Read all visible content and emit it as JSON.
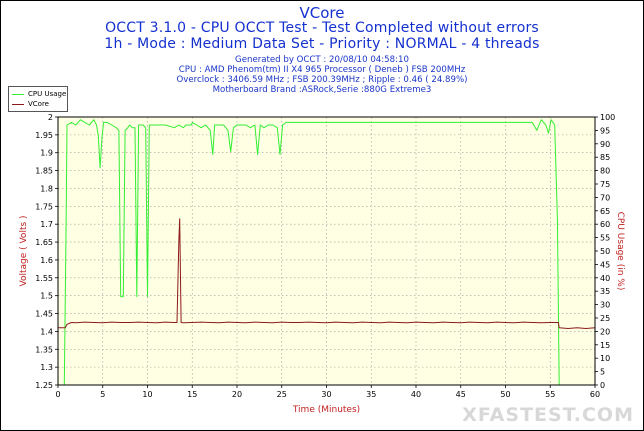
{
  "chart_data": {
    "type": "line",
    "title": "VCore",
    "subtitle": [
      "OCCT 3.1.0 - CPU OCCT Test - Test Completed without errors",
      "1h - Mode : Medium Data Set - Priority : NORMAL - 4 threads"
    ],
    "info": [
      "Generated by OCCT : 20/08/10 04:58:10",
      "CPU : AMD Phenom(tm) II X4 965 Processor ( Deneb ) FSB 200MHz",
      "Overclock : 3406.59 MHz ; FSB 200.39MHz ; Ripple : 0.46 ( 24.89%)",
      "Motherboard Brand :ASRock,Serie :880G Extreme3"
    ],
    "xlabel": "Time (Minutes)",
    "ylabel": "Voltage ( Volts )",
    "y2label": "CPU Usage (in %)",
    "xlim": [
      0,
      60
    ],
    "ylim": [
      1.25,
      2
    ],
    "y2lim": [
      0,
      100
    ],
    "xticks": [
      0,
      5,
      10,
      15,
      20,
      25,
      30,
      35,
      40,
      45,
      50,
      55,
      60
    ],
    "yticks": [
      1.25,
      1.3,
      1.35,
      1.4,
      1.45,
      1.5,
      1.55,
      1.6,
      1.65,
      1.7,
      1.75,
      1.8,
      1.85,
      1.9,
      1.95,
      2
    ],
    "y2ticks": [
      0,
      5,
      10,
      15,
      20,
      25,
      30,
      35,
      40,
      45,
      50,
      55,
      60,
      65,
      70,
      75,
      80,
      85,
      90,
      95,
      100
    ],
    "grid": true,
    "legend_position": "top-left",
    "series": [
      {
        "name": "CPU Usage",
        "axis": "right",
        "color": "#33ee33",
        "points": [
          [
            0,
            0
          ],
          [
            0.3,
            0
          ],
          [
            0.7,
            0
          ],
          [
            0.9,
            60
          ],
          [
            1.0,
            97
          ],
          [
            1.5,
            98
          ],
          [
            2,
            97
          ],
          [
            2.5,
            99
          ],
          [
            3,
            98
          ],
          [
            3.5,
            97
          ],
          [
            4,
            99
          ],
          [
            4.3,
            97
          ],
          [
            4.5,
            93
          ],
          [
            4.7,
            81
          ],
          [
            4.9,
            92
          ],
          [
            5.1,
            98
          ],
          [
            5.5,
            98
          ],
          [
            6,
            97
          ],
          [
            6.5,
            96
          ],
          [
            6.8,
            95
          ],
          [
            7.0,
            33
          ],
          [
            7.3,
            33
          ],
          [
            7.5,
            95
          ],
          [
            7.8,
            96
          ],
          [
            8.0,
            97
          ],
          [
            8.3,
            96
          ],
          [
            8.6,
            96
          ],
          [
            8.8,
            33
          ],
          [
            9.0,
            97
          ],
          [
            9.5,
            97
          ],
          [
            9.8,
            96
          ],
          [
            10.0,
            33
          ],
          [
            10.2,
            97
          ],
          [
            10.5,
            97
          ],
          [
            11,
            97
          ],
          [
            11.5,
            97
          ],
          [
            12,
            97
          ],
          [
            13,
            96
          ],
          [
            13.5,
            97
          ],
          [
            14,
            96
          ],
          [
            14.3,
            97
          ],
          [
            14.5,
            97
          ],
          [
            14.7,
            97
          ],
          [
            14.9,
            97
          ],
          [
            15,
            98
          ],
          [
            15.5,
            97
          ],
          [
            16,
            96
          ],
          [
            16.5,
            97
          ],
          [
            17,
            95
          ],
          [
            17.3,
            86
          ],
          [
            17.5,
            97
          ],
          [
            18,
            97
          ],
          [
            18.5,
            97
          ],
          [
            19,
            95
          ],
          [
            19.3,
            87
          ],
          [
            19.6,
            96
          ],
          [
            20,
            97
          ],
          [
            20.5,
            97
          ],
          [
            21,
            97
          ],
          [
            21.5,
            96
          ],
          [
            22,
            97
          ],
          [
            22.3,
            86
          ],
          [
            22.6,
            97
          ],
          [
            23,
            96
          ],
          [
            23.5,
            97
          ],
          [
            24,
            97
          ],
          [
            24.5,
            96
          ],
          [
            24.8,
            86
          ],
          [
            25.1,
            97
          ],
          [
            25.5,
            98
          ],
          [
            26,
            98
          ],
          [
            27,
            98
          ],
          [
            28,
            98
          ],
          [
            29,
            98
          ],
          [
            30,
            98
          ],
          [
            31,
            98
          ],
          [
            32,
            98
          ],
          [
            33,
            98
          ],
          [
            34,
            98
          ],
          [
            35,
            98
          ],
          [
            36,
            98
          ],
          [
            37,
            98
          ],
          [
            38,
            98
          ],
          [
            39,
            98
          ],
          [
            40,
            98
          ],
          [
            41,
            98
          ],
          [
            42,
            98
          ],
          [
            43,
            98
          ],
          [
            44,
            98
          ],
          [
            45,
            98
          ],
          [
            46,
            98
          ],
          [
            47,
            98
          ],
          [
            48,
            98
          ],
          [
            49,
            98
          ],
          [
            50,
            98
          ],
          [
            51,
            98
          ],
          [
            52,
            98
          ],
          [
            53,
            98
          ],
          [
            53.5,
            95
          ],
          [
            54,
            99
          ],
          [
            54.5,
            97
          ],
          [
            54.8,
            94
          ],
          [
            55.1,
            99
          ],
          [
            55.5,
            97
          ],
          [
            55.8,
            62
          ],
          [
            56.0,
            0
          ],
          [
            60,
            0
          ]
        ]
      },
      {
        "name": "VCore",
        "axis": "left",
        "color": "#8c1a1a",
        "points": [
          [
            0,
            1.41
          ],
          [
            0.8,
            1.41
          ],
          [
            1.0,
            1.42
          ],
          [
            1.5,
            1.425
          ],
          [
            2,
            1.424
          ],
          [
            3,
            1.426
          ],
          [
            4,
            1.425
          ],
          [
            5,
            1.424
          ],
          [
            6,
            1.426
          ],
          [
            7,
            1.425
          ],
          [
            8,
            1.425
          ],
          [
            9,
            1.426
          ],
          [
            10,
            1.425
          ],
          [
            11,
            1.424
          ],
          [
            12,
            1.426
          ],
          [
            13,
            1.425
          ],
          [
            13.3,
            1.425
          ],
          [
            13.5,
            1.65
          ],
          [
            13.6,
            1.715
          ],
          [
            13.75,
            1.425
          ],
          [
            14,
            1.424
          ],
          [
            15,
            1.425
          ],
          [
            16,
            1.426
          ],
          [
            17,
            1.425
          ],
          [
            18,
            1.424
          ],
          [
            19,
            1.426
          ],
          [
            20,
            1.425
          ],
          [
            21,
            1.424
          ],
          [
            22,
            1.426
          ],
          [
            23,
            1.425
          ],
          [
            24,
            1.424
          ],
          [
            25,
            1.426
          ],
          [
            26,
            1.425
          ],
          [
            27,
            1.425
          ],
          [
            28,
            1.426
          ],
          [
            29,
            1.425
          ],
          [
            30,
            1.424
          ],
          [
            31,
            1.426
          ],
          [
            32,
            1.425
          ],
          [
            33,
            1.424
          ],
          [
            34,
            1.426
          ],
          [
            35,
            1.425
          ],
          [
            36,
            1.424
          ],
          [
            37,
            1.426
          ],
          [
            38,
            1.425
          ],
          [
            39,
            1.424
          ],
          [
            40,
            1.426
          ],
          [
            41,
            1.425
          ],
          [
            42,
            1.424
          ],
          [
            43,
            1.426
          ],
          [
            44,
            1.425
          ],
          [
            45,
            1.424
          ],
          [
            46,
            1.426
          ],
          [
            47,
            1.425
          ],
          [
            48,
            1.424
          ],
          [
            49,
            1.426
          ],
          [
            50,
            1.425
          ],
          [
            51,
            1.424
          ],
          [
            52,
            1.426
          ],
          [
            53,
            1.425
          ],
          [
            54,
            1.424
          ],
          [
            55,
            1.425
          ],
          [
            55.9,
            1.425
          ],
          [
            56.0,
            1.41
          ],
          [
            57,
            1.408
          ],
          [
            58,
            1.41
          ],
          [
            59,
            1.408
          ],
          [
            60,
            1.41
          ]
        ]
      }
    ]
  },
  "watermark": "XFASTEST.COM"
}
